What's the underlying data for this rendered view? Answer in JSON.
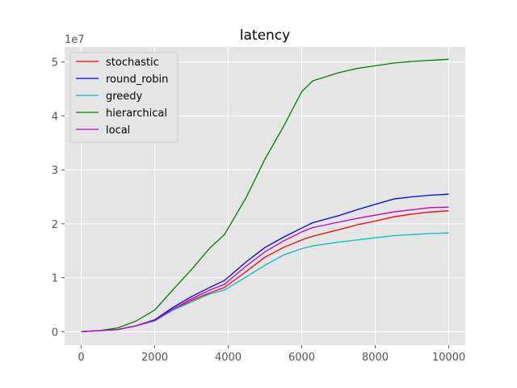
{
  "chart_data": {
    "type": "line",
    "title": "latency",
    "xlabel": "",
    "ylabel": "",
    "y_scale_label": "1e7",
    "xlim": [
      -450,
      10450
    ],
    "ylim": [
      -2.5,
      52.8
    ],
    "xticks": [
      0,
      2000,
      4000,
      6000,
      8000,
      10000
    ],
    "xtick_labels": [
      "0",
      "2000",
      "4000",
      "6000",
      "8000",
      "10000"
    ],
    "yticks": [
      0,
      10,
      20,
      30,
      40,
      50
    ],
    "ytick_labels": [
      "0",
      "1",
      "2",
      "3",
      "4",
      "5"
    ],
    "grid": true,
    "legend_position": "top-left",
    "x": [
      0,
      500,
      1000,
      1500,
      2000,
      2500,
      3000,
      3500,
      3900,
      4500,
      5000,
      5500,
      6000,
      6300,
      7000,
      7500,
      8000,
      8500,
      9000,
      9500,
      10000
    ],
    "series": [
      {
        "name": "stochastic",
        "color": "#ff0000",
        "values": [
          0,
          0.2,
          0.4,
          1.1,
          2.0,
          4.0,
          5.8,
          7.2,
          8.2,
          11.2,
          13.8,
          15.6,
          17.0,
          17.7,
          18.9,
          19.8,
          20.5,
          21.3,
          21.8,
          22.2,
          22.4
        ]
      },
      {
        "name": "round_robin",
        "color": "#0000ff",
        "values": [
          0,
          0.2,
          0.4,
          1.1,
          2.2,
          4.5,
          6.5,
          8.2,
          9.5,
          13.0,
          15.6,
          17.5,
          19.2,
          20.2,
          21.5,
          22.6,
          23.6,
          24.6,
          25.0,
          25.3,
          25.5
        ]
      },
      {
        "name": "greedy",
        "color": "#00bfbf",
        "values": [
          0,
          0.2,
          0.4,
          1.1,
          2.0,
          4.0,
          5.5,
          7.0,
          7.7,
          10.2,
          12.3,
          14.2,
          15.4,
          15.9,
          16.6,
          17.0,
          17.4,
          17.8,
          18.0,
          18.2,
          18.3
        ]
      },
      {
        "name": "hierarchical",
        "color": "#008000",
        "values": [
          0,
          0.2,
          0.7,
          2.0,
          4.0,
          7.8,
          11.5,
          15.5,
          18.0,
          25.0,
          32.0,
          38.0,
          44.5,
          46.5,
          48.0,
          48.8,
          49.3,
          49.8,
          50.1,
          50.3,
          50.5
        ]
      },
      {
        "name": "local",
        "color": "#bf00bf",
        "values": [
          0,
          0.2,
          0.4,
          1.1,
          2.1,
          4.2,
          6.1,
          7.7,
          8.8,
          12.2,
          14.8,
          16.8,
          18.5,
          19.3,
          20.3,
          21.0,
          21.6,
          22.2,
          22.6,
          23.0,
          23.1
        ]
      }
    ]
  }
}
